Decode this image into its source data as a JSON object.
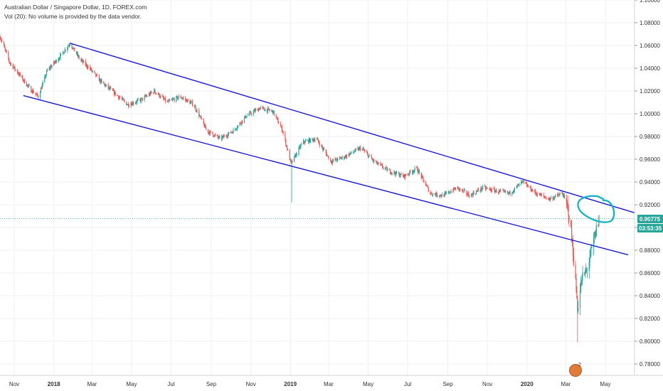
{
  "header": {
    "title": "Australian Dollar / Singapore Dollar, 1D, FOREX.com",
    "volume_note": "Vol (20): No volume is provided by the data vendor."
  },
  "price_badge": {
    "price": "0.90775",
    "countdown": "03:53:35",
    "color": "#26a69a"
  },
  "colors": {
    "up": "#26a69a",
    "down": "#ef5350",
    "channel": "#1a1ad6",
    "annotation": "#1ab3c8",
    "grid": "#eef0f3"
  },
  "notification": {
    "icon": "idea-icon",
    "count": "2"
  },
  "chart_data": {
    "type": "candlestick",
    "title": "Australian Dollar / Singapore Dollar, 1D, FOREX.com",
    "ylim": [
      0.77,
      1.1
    ],
    "y_ticks": [
      "0.78000",
      "0.80000",
      "0.82000",
      "0.84000",
      "0.86000",
      "0.88000",
      "0.90000",
      "0.92000",
      "0.94000",
      "0.96000",
      "0.98000",
      "1.00000",
      "1.02000",
      "1.04000",
      "1.06000",
      "1.08000",
      "1.10000"
    ],
    "x_ticks": [
      "Nov",
      "2018",
      "Mar",
      "May",
      "Jul",
      "Sep",
      "Nov",
      "2019",
      "Mar",
      "May",
      "Jul",
      "Sep",
      "Nov",
      "2020",
      "Mar",
      "May"
    ],
    "x_range": [
      "2017-10-10",
      "2020-06-15"
    ],
    "last_price": 0.90775,
    "price_path": [
      [
        "2017-10-10",
        1.068
      ],
      [
        "2017-10-25",
        1.045
      ],
      [
        "2017-11-08",
        1.035
      ],
      [
        "2017-11-25",
        1.022
      ],
      [
        "2017-12-08",
        1.015
      ],
      [
        "2017-12-22",
        1.038
      ],
      [
        "2018-01-10",
        1.05
      ],
      [
        "2018-01-26",
        1.062
      ],
      [
        "2018-02-10",
        1.048
      ],
      [
        "2018-02-25",
        1.04
      ],
      [
        "2018-03-15",
        1.028
      ],
      [
        "2018-04-05",
        1.018
      ],
      [
        "2018-04-25",
        1.008
      ],
      [
        "2018-05-15",
        1.012
      ],
      [
        "2018-06-05",
        1.02
      ],
      [
        "2018-06-25",
        1.01
      ],
      [
        "2018-07-15",
        1.015
      ],
      [
        "2018-08-05",
        1.008
      ],
      [
        "2018-08-25",
        0.985
      ],
      [
        "2018-09-15",
        0.978
      ],
      [
        "2018-10-05",
        0.985
      ],
      [
        "2018-10-25",
        0.998
      ],
      [
        "2018-11-15",
        1.005
      ],
      [
        "2018-12-05",
        1.002
      ],
      [
        "2018-12-20",
        0.985
      ],
      [
        "2019-01-02",
        0.956
      ],
      [
        "2019-01-20",
        0.975
      ],
      [
        "2019-02-10",
        0.978
      ],
      [
        "2019-03-05",
        0.958
      ],
      [
        "2019-03-25",
        0.962
      ],
      [
        "2019-04-20",
        0.97
      ],
      [
        "2019-05-10",
        0.958
      ],
      [
        "2019-06-01",
        0.95
      ],
      [
        "2019-06-25",
        0.945
      ],
      [
        "2019-07-15",
        0.952
      ],
      [
        "2019-08-05",
        0.93
      ],
      [
        "2019-08-25",
        0.928
      ],
      [
        "2019-09-15",
        0.935
      ],
      [
        "2019-10-05",
        0.928
      ],
      [
        "2019-10-25",
        0.935
      ],
      [
        "2019-11-15",
        0.932
      ],
      [
        "2019-12-05",
        0.93
      ],
      [
        "2019-12-25",
        0.94
      ],
      [
        "2020-01-15",
        0.93
      ],
      [
        "2020-02-05",
        0.925
      ],
      [
        "2020-02-25",
        0.93
      ],
      [
        "2020-03-05",
        0.915
      ],
      [
        "2020-03-12",
        0.88
      ],
      [
        "2020-03-19",
        0.83
      ],
      [
        "2020-03-26",
        0.855
      ],
      [
        "2020-04-02",
        0.862
      ],
      [
        "2020-04-10",
        0.88
      ],
      [
        "2020-04-21",
        0.90775
      ]
    ],
    "wicks": [
      {
        "date": "2019-01-03",
        "low": 0.922
      },
      {
        "date": "2020-03-19",
        "low": 0.799
      }
    ],
    "trendlines": [
      {
        "name": "upper channel",
        "from": [
          "2018-01-26",
          1.062
        ],
        "to": [
          "2020-06-15",
          0.913
        ]
      },
      {
        "name": "lower channel",
        "from": [
          "2017-11-15",
          1.016
        ],
        "to": [
          "2020-06-05",
          0.876
        ]
      }
    ]
  }
}
